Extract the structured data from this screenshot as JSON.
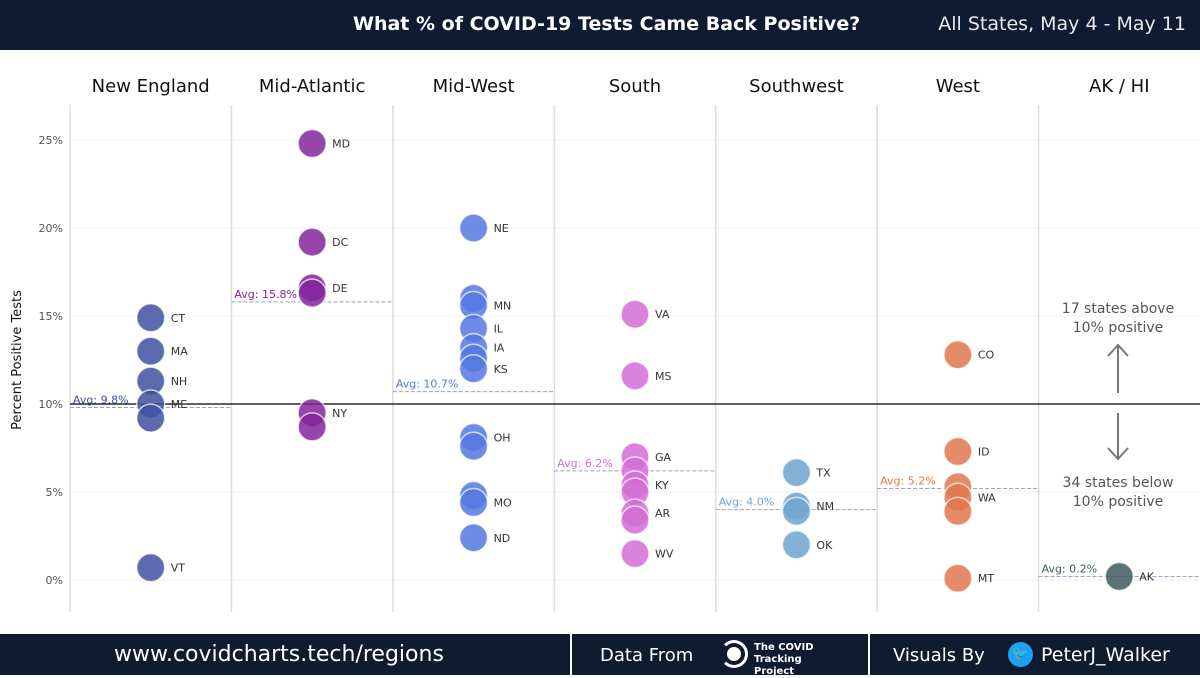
{
  "header": {
    "title": "What % of COVID-19 Tests Came Back Positive?",
    "subtitle": "All States, May 4 - May 11"
  },
  "footer": {
    "url": "www.covidcharts.tech/regions",
    "data_from": "Data From",
    "source_logo": "The COVID Tracking Project",
    "visuals_by": "Visuals By",
    "twitter": "PeterJ_Walker",
    "icons": [
      "covid-tracking-logo",
      "twitter-icon"
    ]
  },
  "chart_data": {
    "type": "scatter",
    "title": "What % of COVID-19 Tests Came Back Positive?",
    "ylabel": "Percent Positive Tests",
    "ylim": [
      0,
      25
    ],
    "yticks": [
      "0%",
      "5%",
      "10%",
      "15%",
      "20%",
      "25%"
    ],
    "reference_line": 10,
    "annotations": {
      "above": "17 states above\n10% positive",
      "below": "34 states below\n10% positive"
    },
    "categories": [
      "New England",
      "Mid-Atlantic",
      "Mid-West",
      "South",
      "Southwest",
      "West",
      "AK / HI"
    ],
    "series": [
      {
        "name": "New England",
        "color": "#3f51a0",
        "avg": 9.8,
        "avg_label": "Avg: 9.8%",
        "points": [
          {
            "label": "CT",
            "y": 14.9
          },
          {
            "label": "MA",
            "y": 13.0
          },
          {
            "label": "NH",
            "y": 11.3
          },
          {
            "label": "ME",
            "y": 10.0
          },
          {
            "label": "",
            "y": 9.2
          },
          {
            "label": "VT",
            "y": 0.7
          }
        ]
      },
      {
        "name": "Mid-Atlantic",
        "color": "#84259a",
        "avg": 15.8,
        "avg_label": "Avg: 15.8%",
        "points": [
          {
            "label": "MD",
            "y": 24.8
          },
          {
            "label": "DC",
            "y": 19.2
          },
          {
            "label": "DE",
            "y": 16.6
          },
          {
            "label": "",
            "y": 16.3
          },
          {
            "label": "NY",
            "y": 9.5
          },
          {
            "label": "",
            "y": 8.7
          }
        ]
      },
      {
        "name": "Mid-West",
        "color": "#5577e0",
        "avg": 10.7,
        "avg_label": "Avg: 10.7%",
        "points": [
          {
            "label": "NE",
            "y": 20.0
          },
          {
            "label": "",
            "y": 16.0
          },
          {
            "label": "MN",
            "y": 15.6
          },
          {
            "label": "IL",
            "y": 14.3
          },
          {
            "label": "IA",
            "y": 13.2
          },
          {
            "label": "",
            "y": 12.6
          },
          {
            "label": "KS",
            "y": 12.0
          },
          {
            "label": "OH",
            "y": 8.1
          },
          {
            "label": "",
            "y": 7.6
          },
          {
            "label": "",
            "y": 4.8
          },
          {
            "label": "MO",
            "y": 4.4
          },
          {
            "label": "ND",
            "y": 2.4
          }
        ]
      },
      {
        "name": "South",
        "color": "#d46dd6",
        "avg": 6.2,
        "avg_label": "Avg: 6.2%",
        "points": [
          {
            "label": "VA",
            "y": 15.1
          },
          {
            "label": "MS",
            "y": 11.6
          },
          {
            "label": "GA",
            "y": 7.0
          },
          {
            "label": "",
            "y": 6.2
          },
          {
            "label": "KY",
            "y": 5.4
          },
          {
            "label": "",
            "y": 5.0
          },
          {
            "label": "AR",
            "y": 3.8
          },
          {
            "label": "",
            "y": 3.4
          },
          {
            "label": "WV",
            "y": 1.5
          }
        ]
      },
      {
        "name": "Southwest",
        "color": "#6fa5cf",
        "avg": 4.0,
        "avg_label": "Avg: 4.0%",
        "points": [
          {
            "label": "TX",
            "y": 6.1
          },
          {
            "label": "NM",
            "y": 4.2
          },
          {
            "label": "",
            "y": 3.9
          },
          {
            "label": "OK",
            "y": 2.0
          }
        ]
      },
      {
        "name": "West",
        "color": "#e0774c",
        "avg": 5.2,
        "avg_label": "Avg: 5.2%",
        "points": [
          {
            "label": "CO",
            "y": 12.8
          },
          {
            "label": "ID",
            "y": 7.3
          },
          {
            "label": "",
            "y": 5.3
          },
          {
            "label": "WA",
            "y": 4.7
          },
          {
            "label": "",
            "y": 3.9
          },
          {
            "label": "MT",
            "y": 0.1
          }
        ]
      },
      {
        "name": "AK / HI",
        "color": "#3d5a5a",
        "avg": 0.2,
        "avg_label": "Avg: 0.2%",
        "points": [
          {
            "label": "AK",
            "y": 0.2
          }
        ]
      }
    ]
  }
}
